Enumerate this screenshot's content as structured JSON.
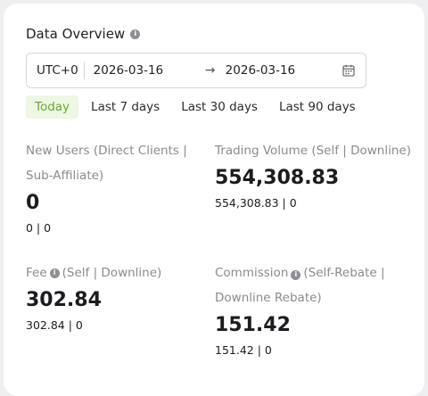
{
  "header": {
    "title": "Data Overview",
    "info_icon": "i"
  },
  "date_picker": {
    "timezone": "UTC+0",
    "start_date": "2026-03-16",
    "arrow": "→",
    "end_date": "2026-03-16",
    "icon": "calendar-icon"
  },
  "range_tabs": [
    {
      "label": "Today",
      "active": true
    },
    {
      "label": "Last 7 days",
      "active": false
    },
    {
      "label": "Last 30 days",
      "active": false
    },
    {
      "label": "Last 90 days",
      "active": false
    }
  ],
  "stats": {
    "new_users": {
      "label": "New Users (Direct Clients | Sub-Affiliate)",
      "value": "0",
      "sub": "0 | 0"
    },
    "trading_volume": {
      "label": "Trading Volume (Self | Downline)",
      "value": "554,308.83",
      "sub": "554,308.83 | 0"
    },
    "fee": {
      "label_prefix": "Fee",
      "label_suffix": "(Self | Downline)",
      "value": "302.84",
      "sub": "302.84 | 0"
    },
    "commission": {
      "label_prefix": "Commission",
      "label_suffix": "(Self-Rebate | Downline Rebate)",
      "value": "151.42",
      "sub": "151.42 | 0"
    }
  },
  "colors": {
    "accent_green": "#6ea53a",
    "active_tab_bg": "#eef6e4",
    "muted_text": "#8a8b90"
  }
}
